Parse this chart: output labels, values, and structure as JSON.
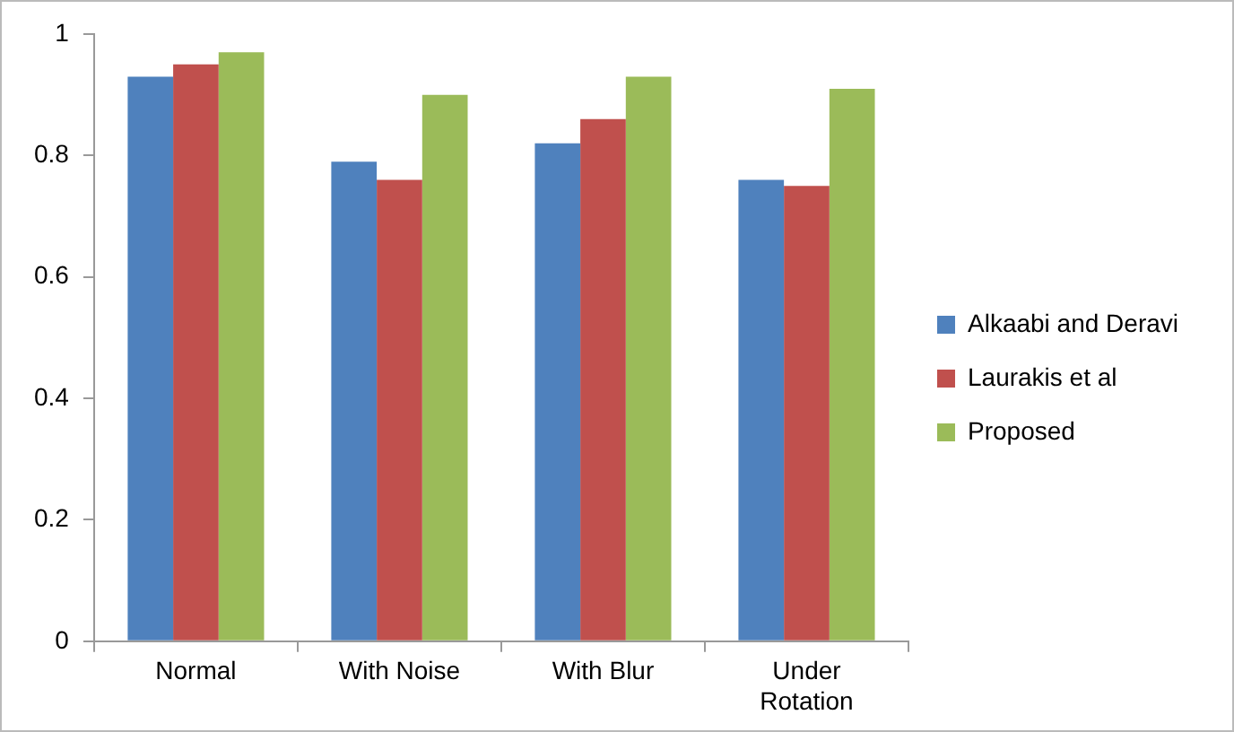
{
  "chart_data": {
    "type": "bar",
    "categories": [
      "Normal",
      "With Noise",
      "With Blur",
      "Under Rotation"
    ],
    "series": [
      {
        "name": "Alkaabi and Deravi",
        "color": "#4f81bd",
        "values": [
          0.93,
          0.79,
          0.82,
          0.76
        ]
      },
      {
        "name": "Laurakis et al",
        "color": "#c0504d",
        "values": [
          0.95,
          0.76,
          0.86,
          0.75
        ]
      },
      {
        "name": "Proposed",
        "color": "#9bbb59",
        "values": [
          0.97,
          0.9,
          0.93,
          0.91
        ]
      }
    ],
    "ylim": [
      0,
      1
    ],
    "yticks": [
      0,
      0.2,
      0.4,
      0.6,
      0.8,
      1
    ],
    "grid": false,
    "legend": "right"
  }
}
